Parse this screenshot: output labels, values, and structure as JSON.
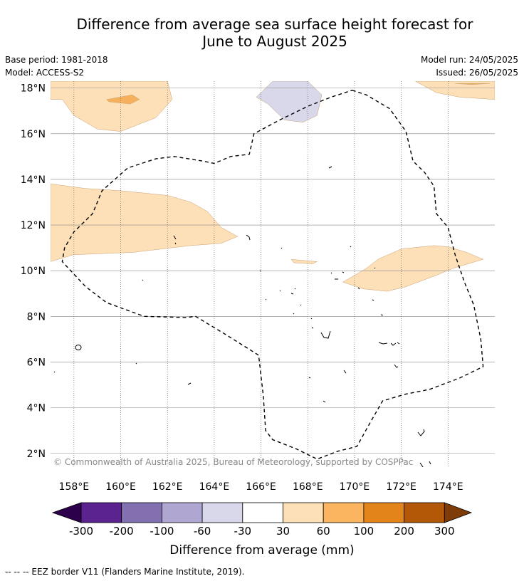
{
  "title_line1": "Difference from average sea surface height forecast for",
  "title_line2": "June to August 2025",
  "meta_left": [
    "Base period: 1981-2018",
    "Model: ACCESS-S2"
  ],
  "meta_right": [
    "Model run: 24/05/2025",
    "Issued: 26/05/2025"
  ],
  "map": {
    "lon_range": [
      157,
      176
    ],
    "lat_range": [
      1.4,
      18.3
    ],
    "lat_ticks": [
      {
        "value": 2,
        "label": "2°N"
      },
      {
        "value": 4,
        "label": "4°N"
      },
      {
        "value": 6,
        "label": "6°N"
      },
      {
        "value": 8,
        "label": "8°N"
      },
      {
        "value": 10,
        "label": "10°N"
      },
      {
        "value": 12,
        "label": "12°N"
      },
      {
        "value": 14,
        "label": "14°N"
      },
      {
        "value": 16,
        "label": "16°N"
      },
      {
        "value": 18,
        "label": "18°N"
      }
    ],
    "lon_ticks": [
      {
        "value": 158,
        "label": "158°E"
      },
      {
        "value": 160,
        "label": "160°E"
      },
      {
        "value": 162,
        "label": "162°E"
      },
      {
        "value": 164,
        "label": "164°E"
      },
      {
        "value": 166,
        "label": "166°E"
      },
      {
        "value": 168,
        "label": "168°E"
      },
      {
        "value": 170,
        "label": "170°E"
      },
      {
        "value": 172,
        "label": "172°E"
      },
      {
        "value": 174,
        "label": "174°E"
      }
    ],
    "copyright": "© Commonwealth of Australia 2025, Bureau of Meteorology, supported by COSPPac",
    "regions": [
      {
        "level": "30 to 60",
        "color": "#fde0b8",
        "points": [
          [
            157,
            17.5
          ],
          [
            157.5,
            17.5
          ],
          [
            158,
            16.8
          ],
          [
            159,
            16.2
          ],
          [
            160,
            16.1
          ],
          [
            161.5,
            16.7
          ],
          [
            162.2,
            17.5
          ],
          [
            162,
            18.3
          ],
          [
            157,
            18.3
          ]
        ]
      },
      {
        "level": "60 to 100",
        "color": "#f6b05c",
        "points": [
          [
            159.4,
            17.5
          ],
          [
            160.5,
            17.7
          ],
          [
            160.8,
            17.5
          ],
          [
            160.4,
            17.3
          ],
          [
            159.5,
            17.4
          ]
        ]
      },
      {
        "level": "30 to 60",
        "color": "#fde0b8",
        "points": [
          [
            172.6,
            18.3
          ],
          [
            173.5,
            17.8
          ],
          [
            174.5,
            17.6
          ],
          [
            176,
            17.5
          ],
          [
            176,
            18.3
          ]
        ]
      },
      {
        "level": "60 to 100",
        "color": "#f6b05c",
        "points": [
          [
            174.3,
            18.2
          ],
          [
            175,
            18.15
          ],
          [
            175.8,
            18.2
          ]
        ]
      },
      {
        "level": "-60 to -30",
        "color": "#d8d8ea",
        "points": [
          [
            166.5,
            18.3
          ],
          [
            168,
            18.3
          ],
          [
            168.6,
            17.7
          ],
          [
            168.4,
            16.8
          ],
          [
            167.8,
            16.5
          ],
          [
            167,
            16.6
          ],
          [
            166.3,
            17.3
          ],
          [
            165.8,
            17.6
          ]
        ]
      },
      {
        "level": "30 to 60",
        "color": "#fde0b8",
        "points": [
          [
            157,
            13.8
          ],
          [
            158.5,
            13.6
          ],
          [
            160,
            13.5
          ],
          [
            162,
            13.3
          ],
          [
            163,
            13
          ],
          [
            163.7,
            12.6
          ],
          [
            164.3,
            11.9
          ],
          [
            165,
            11.5
          ],
          [
            164.3,
            11.2
          ],
          [
            163,
            11.1
          ],
          [
            160.5,
            10.8
          ],
          [
            158,
            10.7
          ],
          [
            157,
            10.4
          ]
        ]
      },
      {
        "level": "30 to 60",
        "color": "#fde0b8",
        "points": [
          [
            169.5,
            9.5
          ],
          [
            170.5,
            10.1
          ],
          [
            171,
            10.5
          ],
          [
            172,
            10.95
          ],
          [
            173.4,
            11.1
          ],
          [
            174,
            11.05
          ],
          [
            174.8,
            10.8
          ],
          [
            175.5,
            10.5
          ],
          [
            174.2,
            10.1
          ],
          [
            173.5,
            9.8
          ],
          [
            172.2,
            9.3
          ],
          [
            171.4,
            9.1
          ],
          [
            170.4,
            9.2
          ]
        ]
      },
      {
        "level": "30 to 60",
        "color": "#fde0b8",
        "points": [
          [
            167.3,
            10.5
          ],
          [
            167.8,
            10.45
          ],
          [
            168.4,
            10.4
          ],
          [
            168.2,
            10.3
          ],
          [
            167.4,
            10.35
          ]
        ]
      }
    ],
    "eez_border": [
      [
        169.9,
        17.9
      ],
      [
        170.5,
        17.7
      ],
      [
        171.5,
        17.1
      ],
      [
        172.2,
        16.1
      ],
      [
        172.5,
        14.8
      ],
      [
        173,
        14.3
      ],
      [
        173.4,
        13.7
      ],
      [
        173.5,
        12.5
      ],
      [
        174,
        11.9
      ],
      [
        174.3,
        10.7
      ],
      [
        174.7,
        9.5
      ],
      [
        175.1,
        8.5
      ],
      [
        175.4,
        7.0
      ],
      [
        175.5,
        5.8
      ],
      [
        174.5,
        5.3
      ],
      [
        173.2,
        4.8
      ],
      [
        172.2,
        4.6
      ],
      [
        171.2,
        4.3
      ],
      [
        170.7,
        3.4
      ],
      [
        170.1,
        2.3
      ],
      [
        169.3,
        2.1
      ],
      [
        168.4,
        1.75
      ],
      [
        167.5,
        2.2
      ],
      [
        166.5,
        2.6
      ],
      [
        166.2,
        3.0
      ],
      [
        166.1,
        4.5
      ],
      [
        165.9,
        6.3
      ],
      [
        164.5,
        7.2
      ],
      [
        163.2,
        8.0
      ],
      [
        162.8,
        7.95
      ],
      [
        161,
        8.0
      ],
      [
        159.4,
        8.6
      ],
      [
        158.5,
        9.3
      ],
      [
        157.5,
        10.4
      ],
      [
        157.6,
        11.0
      ],
      [
        158,
        11.7
      ],
      [
        158.8,
        12.5
      ],
      [
        159.2,
        13.5
      ],
      [
        160.3,
        14.5
      ],
      [
        161.5,
        14.9
      ],
      [
        162.3,
        15.0
      ],
      [
        163.5,
        14.8
      ],
      [
        164,
        14.7
      ],
      [
        164.7,
        15.0
      ],
      [
        165.5,
        15.1
      ],
      [
        165.7,
        16.0
      ],
      [
        166.8,
        16.6
      ],
      [
        168,
        17.2
      ],
      [
        169,
        17.6
      ]
    ]
  },
  "colorbar": {
    "segments": [
      {
        "color": "#2d004b",
        "type": "arrow-left"
      },
      {
        "color": "#5a2390"
      },
      {
        "color": "#8370b0"
      },
      {
        "color": "#b0a6d2"
      },
      {
        "color": "#d8d8ea"
      },
      {
        "color": "#ffffff"
      },
      {
        "color": "#fde0b8"
      },
      {
        "color": "#fbb561"
      },
      {
        "color": "#e3841a"
      },
      {
        "color": "#b35806"
      },
      {
        "color": "#7f3b08",
        "type": "arrow-right"
      }
    ],
    "tick_labels": [
      "-300",
      "-200",
      "-100",
      "-60",
      "-30",
      "30",
      "60",
      "100",
      "200",
      "300"
    ],
    "label": "Difference from average (mm)"
  },
  "footer": "--  --  -- EEZ border V11 (Flanders Marine Institute, 2019)."
}
